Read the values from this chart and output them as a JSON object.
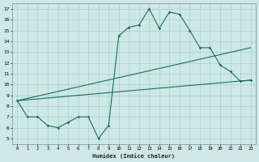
{
  "xlabel": "Humidex (Indice chaleur)",
  "ylabel": "",
  "xlim": [
    -0.5,
    23.5
  ],
  "ylim": [
    4.5,
    17.5
  ],
  "xticks": [
    0,
    1,
    2,
    3,
    4,
    5,
    6,
    7,
    8,
    9,
    10,
    11,
    12,
    13,
    14,
    15,
    16,
    17,
    18,
    19,
    20,
    21,
    22,
    23
  ],
  "yticks": [
    5,
    6,
    7,
    8,
    9,
    10,
    11,
    12,
    13,
    14,
    15,
    16,
    17
  ],
  "bg_color": "#cde8e5",
  "grid_color": "#aacfcc",
  "line_color": "#1a6b63",
  "line1_x": [
    0,
    1,
    2,
    3,
    4,
    5,
    6,
    7,
    8,
    9,
    10,
    11,
    12,
    13,
    14,
    15,
    16,
    17,
    18,
    19,
    20,
    21,
    22,
    23
  ],
  "line1_y": [
    8.5,
    7.0,
    7.0,
    6.2,
    6.0,
    6.5,
    7.0,
    7.0,
    5.0,
    6.2,
    14.5,
    15.3,
    15.5,
    17.0,
    15.2,
    16.7,
    16.5,
    15.0,
    13.4,
    13.4,
    11.8,
    11.2,
    10.3,
    10.4
  ],
  "line2_x": [
    0,
    23
  ],
  "line2_y": [
    8.5,
    10.4
  ],
  "line3_x": [
    0,
    23
  ],
  "line3_y": [
    8.5,
    13.4
  ]
}
